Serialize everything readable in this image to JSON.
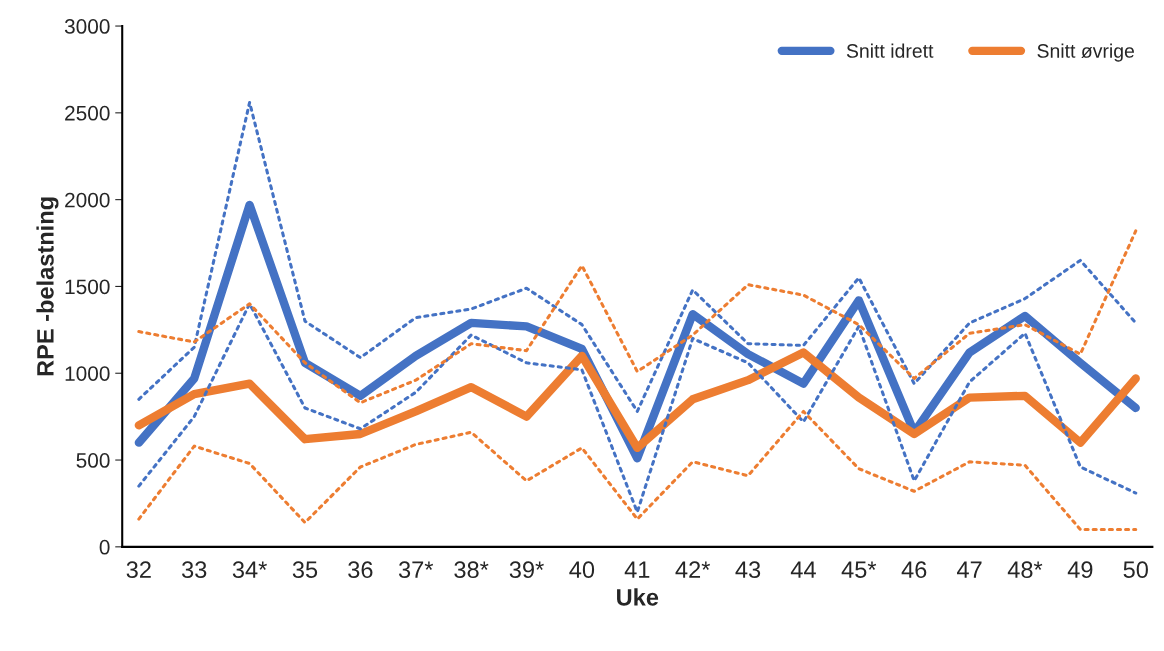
{
  "chart_data": {
    "type": "line",
    "xlabel": "Uke",
    "ylabel": "RPE -belastning",
    "categories": [
      "32",
      "33",
      "34*",
      "35",
      "36",
      "37*",
      "38*",
      "39*",
      "40",
      "41",
      "42*",
      "43",
      "44",
      "45*",
      "46",
      "47",
      "48*",
      "49",
      "50"
    ],
    "series": [
      {
        "name": "Snitt idrett",
        "color": "#4472c4",
        "line_style": "solid",
        "values": [
          600,
          970,
          1970,
          1060,
          870,
          1100,
          1290,
          1270,
          1140,
          510,
          1340,
          1110,
          940,
          1420,
          660,
          1120,
          1330,
          1060,
          800
        ]
      },
      {
        "name": "Snitt øvrige",
        "color": "#ed7d31",
        "line_style": "solid",
        "values": [
          700,
          880,
          940,
          620,
          650,
          780,
          920,
          750,
          1100,
          570,
          850,
          960,
          1120,
          860,
          650,
          860,
          870,
          600,
          970
        ]
      },
      {
        "color": "#4472c4",
        "line_style": "dotted",
        "values": [
          850,
          1150,
          2560,
          1300,
          1090,
          1320,
          1370,
          1490,
          1280,
          780,
          1480,
          1170,
          1160,
          1550,
          940,
          1290,
          1430,
          1650,
          1290
        ]
      },
      {
        "color": "#4472c4",
        "line_style": "dotted",
        "values": [
          350,
          750,
          1400,
          800,
          680,
          890,
          1220,
          1060,
          1020,
          200,
          1200,
          1060,
          720,
          1270,
          380,
          950,
          1230,
          460,
          310
        ]
      },
      {
        "color": "#ed7d31",
        "line_style": "dotted",
        "values": [
          1240,
          1180,
          1400,
          1060,
          830,
          960,
          1170,
          1130,
          1620,
          1010,
          1220,
          1510,
          1450,
          1280,
          970,
          1230,
          1280,
          1110,
          1820
        ]
      },
      {
        "color": "#ed7d31",
        "line_style": "dotted",
        "values": [
          160,
          580,
          480,
          140,
          460,
          590,
          660,
          380,
          570,
          160,
          490,
          410,
          780,
          450,
          320,
          490,
          470,
          100,
          100
        ]
      }
    ],
    "ylim": [
      0,
      3000
    ],
    "yticks": [
      0,
      500,
      1000,
      1500,
      2000,
      2500,
      3000
    ],
    "grid": false,
    "legend": "top right",
    "marker": "none"
  }
}
